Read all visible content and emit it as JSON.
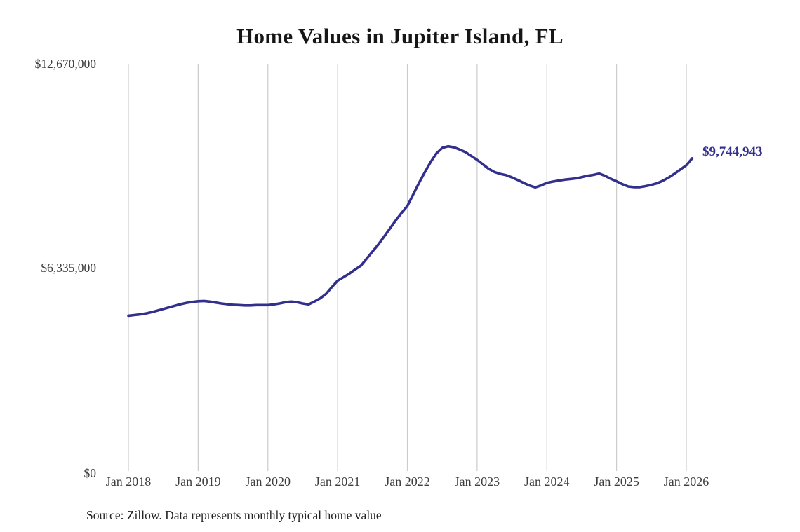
{
  "source_note": "Source: Zillow. Data represents monthly typical home value",
  "chart_data": {
    "type": "line",
    "title": "Home Values in Jupiter Island, FL",
    "xlabel": "",
    "ylabel": "",
    "ylim": [
      0,
      12670000
    ],
    "y_tick_labels": [
      "$0",
      "$6,335,000",
      "$12,670,000"
    ],
    "x_tick_labels": [
      "Jan 2018",
      "Jan 2019",
      "Jan 2020",
      "Jan 2021",
      "Jan 2022",
      "Jan 2023",
      "Jan 2024",
      "Jan 2025",
      "Jan 2026"
    ],
    "x_start": "Jan 2018",
    "x_frequency": "monthly",
    "grid": "vertical-only",
    "legend": "none",
    "line_color": "#332f8c",
    "grid_color": "#cccccc",
    "end_label": "$9,744,943",
    "final_value": 9744943,
    "values": [
      4840000,
      4860000,
      4880000,
      4910000,
      4950000,
      5000000,
      5050000,
      5100000,
      5150000,
      5200000,
      5240000,
      5270000,
      5290000,
      5300000,
      5280000,
      5250000,
      5220000,
      5200000,
      5180000,
      5170000,
      5160000,
      5160000,
      5170000,
      5170000,
      5170000,
      5190000,
      5220000,
      5260000,
      5280000,
      5260000,
      5220000,
      5190000,
      5280000,
      5380000,
      5520000,
      5730000,
      5930000,
      6040000,
      6150000,
      6280000,
      6400000,
      6620000,
      6840000,
      7060000,
      7310000,
      7560000,
      7810000,
      8040000,
      8260000,
      8620000,
      8980000,
      9310000,
      9630000,
      9900000,
      10070000,
      10120000,
      10090000,
      10020000,
      9940000,
      9820000,
      9700000,
      9560000,
      9420000,
      9320000,
      9260000,
      9220000,
      9150000,
      9070000,
      8980000,
      8900000,
      8840000,
      8900000,
      8980000,
      9020000,
      9050000,
      9080000,
      9100000,
      9120000,
      9160000,
      9200000,
      9230000,
      9270000,
      9200000,
      9110000,
      9030000,
      8940000,
      8870000,
      8850000,
      8850000,
      8880000,
      8920000,
      8970000,
      9050000,
      9150000,
      9270000,
      9400000,
      9530000,
      9744943
    ]
  }
}
